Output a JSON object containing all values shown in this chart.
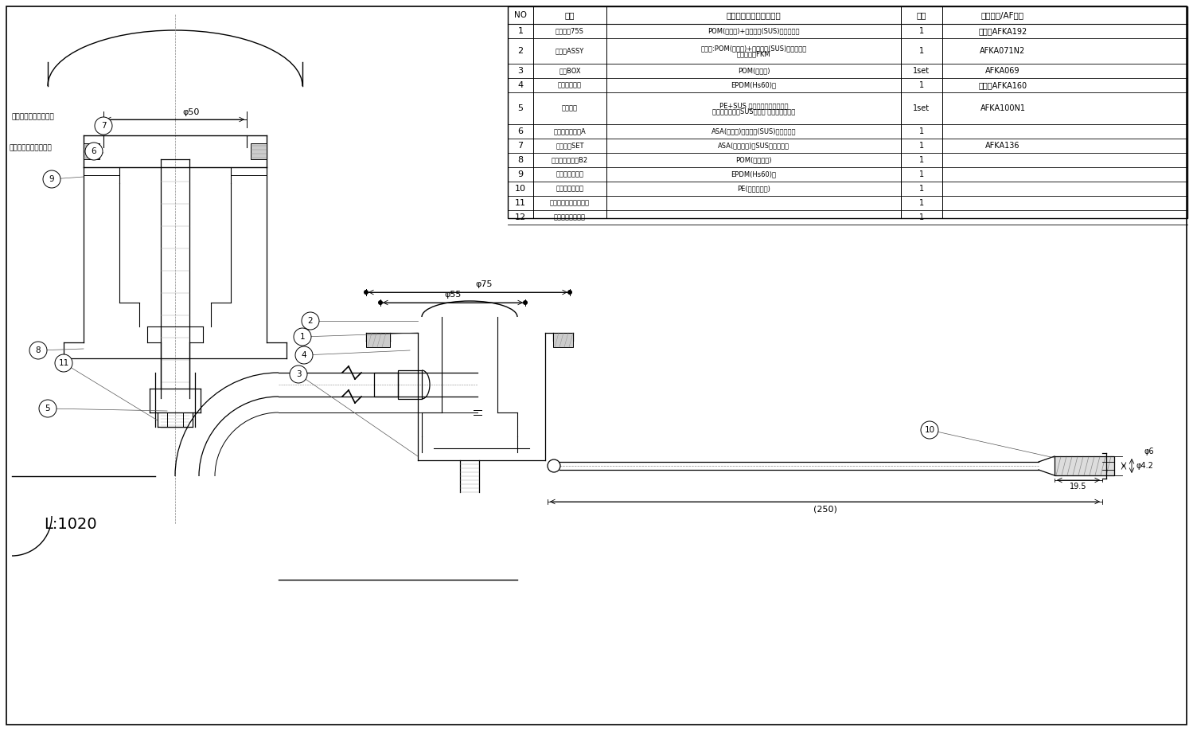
{
  "bg_color": "#ffffff",
  "line_color": "#000000",
  "lw": 0.8,
  "table_headers": [
    "NO",
    "名称",
    "仕様・材質（グレード）",
    "数量",
    "特記事項/AF品番"
  ],
  "table_rows": [
    [
      "1",
      "排水口金75S",
      "POM(グレー)+フランジ(SUS)インサート",
      "1",
      "品番：AFKA192"
    ],
    [
      "2",
      "屋構部ASSY",
      "屋構部:POM(グレー)+フランジ(SUS)インサート\nパッキン：FKM",
      "1",
      "AFKA071N2"
    ],
    [
      "3",
      "ノズBOX",
      "POM(グレー)",
      "1set",
      "AFKA069"
    ],
    [
      "4",
      "ツマミボタン",
      "EPDM(Hs60)黒",
      "1",
      "品番：AFKA160"
    ],
    [
      "5",
      "レリーズ",
      "PE+SUS ストローク調整機構付\nアウターチューSUS組入り ゴムブッシュ付",
      "1set",
      "AFKA100N1"
    ],
    [
      "6",
      "押ボタンガイドA",
      "ASA(グレー)フランジ(SUS)インサート",
      "1",
      ""
    ],
    [
      "7",
      "押ボタンSET",
      "ASA(グリーン)，SUSインサート",
      "1",
      "AFKA136"
    ],
    [
      "8",
      "押ボタンガイドB2",
      "POM(グリーン)",
      "1",
      ""
    ],
    [
      "9",
      "ガイドパッキン",
      "EPDM(Hs60)黒",
      "1",
      ""
    ],
    [
      "10",
      "レリーズ挙入具",
      "PE(ナチュラル)",
      "1",
      ""
    ],
    [
      "11",
      "ロックナンバーシール",
      "",
      "1",
      ""
    ],
    [
      "12",
      "塗工注意ちらし５",
      "",
      "1",
      ""
    ]
  ],
  "dim_phi50": "φ50",
  "dim_phi75": "φ75",
  "dim_phi55": "φ55",
  "dim_L1020": "L:1020",
  "dim_250": "(250)",
  "dim_19_5": "19.5",
  "dim_phi4_2": "φ4.2",
  "dim_phi6": "φ6",
  "stroke_label": "ストローク調整機構付"
}
